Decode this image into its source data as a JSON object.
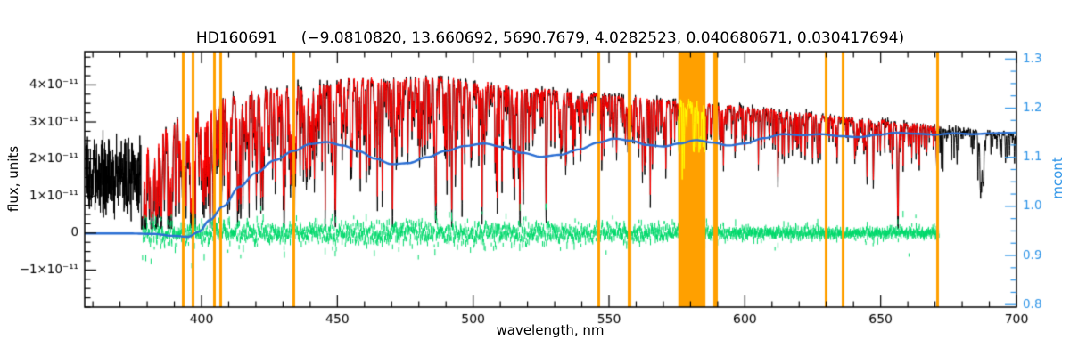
{
  "chart_data": {
    "type": "line",
    "title": "HD160691     (−9.0810820, 13.660692, 5690.7679, 4.0282523, 0.040680671, 0.030417694)",
    "object": "HD160691",
    "header_params": [
      -9.081082,
      13.660692,
      5690.7679,
      4.0282523,
      0.040680671,
      0.030417694
    ],
    "xlabel": "wavelength, nm",
    "ylabel_left": "flux, units",
    "ylabel_right": "mcont",
    "axes": {
      "x": {
        "min": 357,
        "max": 700,
        "major_ticks": [
          400,
          450,
          500,
          550,
          600,
          650,
          700
        ],
        "minor_step": 10
      },
      "flux": {
        "min_1e11": -2,
        "max_1e11": 4.9,
        "major_ticks_1e11": [
          -1,
          0,
          1,
          2,
          3,
          4
        ],
        "tick_labels": [
          "−1×10⁻¹¹",
          "0",
          "1×10⁻¹¹",
          "2×10⁻¹¹",
          "3×10⁻¹¹",
          "4×10⁻¹¹"
        ],
        "minor_step_1e11": 0.25
      },
      "mcont": {
        "min": 0.795,
        "max": 1.315,
        "major_ticks": [
          0.8,
          0.9,
          1.0,
          1.1,
          1.2,
          1.3
        ],
        "tick_labels": [
          "0.8",
          "0.9",
          "1.0",
          "1.1",
          "1.2",
          "1.3"
        ],
        "minor_step": 0.025,
        "color": "#2f95e8"
      }
    },
    "series": {
      "observed": {
        "name": "observed-spectrum",
        "color": "#000000",
        "range_nm": [
          357.35,
          700
        ],
        "noisy_head_nm": [
          357.35,
          377.6
        ],
        "head_level_1e11": 1.55,
        "head_spread_1e11": 1.3,
        "noise_frac": 0.016,
        "continuum_1e11": {
          "x": [
            378,
            385,
            392,
            400,
            408,
            416,
            424,
            432,
            440,
            448,
            456,
            464,
            472,
            480,
            488,
            496,
            504,
            512,
            520,
            530,
            540,
            550,
            560,
            570,
            580,
            590,
            600,
            610,
            620,
            630,
            640,
            650,
            660,
            670,
            680,
            690,
            700
          ],
          "y": [
            2.65,
            2.85,
            3.05,
            3.35,
            3.6,
            3.75,
            3.85,
            3.9,
            4.05,
            4.0,
            4.15,
            4.1,
            4.15,
            4.2,
            4.15,
            4.1,
            4.0,
            3.95,
            3.85,
            3.8,
            3.75,
            3.7,
            3.62,
            3.55,
            3.5,
            3.42,
            3.38,
            3.3,
            3.22,
            3.15,
            3.05,
            3.0,
            2.92,
            2.85,
            2.78,
            2.72,
            2.66
          ]
        },
        "strong_lines": [
          [
            382.0,
            0.55,
            0.3
          ],
          [
            383.2,
            0.5,
            0.2
          ],
          [
            385.0,
            0.4,
            0.2
          ],
          [
            388.9,
            0.6,
            0.35
          ],
          [
            390.6,
            0.35,
            0.15
          ],
          [
            393.37,
            0.93,
            0.45
          ],
          [
            396.85,
            0.91,
            0.45
          ],
          [
            400.9,
            0.35,
            0.12
          ],
          [
            404.58,
            0.55,
            0.15
          ],
          [
            406.3,
            0.4,
            0.12
          ],
          [
            407.2,
            0.45,
            0.12
          ],
          [
            410.17,
            0.73,
            0.25
          ],
          [
            413.2,
            0.3,
            0.12
          ],
          [
            414.4,
            0.4,
            0.15
          ],
          [
            416.7,
            0.3,
            0.1
          ],
          [
            420.2,
            0.35,
            0.12
          ],
          [
            422.67,
            0.6,
            0.18
          ],
          [
            425.0,
            0.4,
            0.12
          ],
          [
            427.2,
            0.45,
            0.12
          ],
          [
            430.3,
            0.5,
            0.4
          ],
          [
            432.6,
            0.4,
            0.15
          ],
          [
            434.05,
            0.78,
            0.3
          ],
          [
            438.35,
            0.55,
            0.25
          ],
          [
            440.5,
            0.4,
            0.15
          ],
          [
            441.5,
            0.35,
            0.12
          ],
          [
            445.5,
            0.3,
            0.1
          ],
          [
            448.1,
            0.35,
            0.12
          ],
          [
            453.0,
            0.3,
            0.15
          ],
          [
            455.4,
            0.4,
            0.1
          ],
          [
            458.7,
            0.3,
            0.1
          ],
          [
            462.0,
            0.3,
            0.1
          ],
          [
            466.8,
            0.3,
            0.12
          ],
          [
            470.3,
            0.3,
            0.12
          ],
          [
            473.7,
            0.25,
            0.1
          ],
          [
            478.3,
            0.3,
            0.12
          ],
          [
            486.13,
            0.66,
            0.25
          ],
          [
            489.1,
            0.35,
            0.15
          ],
          [
            492.0,
            0.3,
            0.1
          ],
          [
            495.7,
            0.3,
            0.12
          ],
          [
            498.2,
            0.35,
            0.15
          ],
          [
            504.2,
            0.3,
            0.1
          ],
          [
            508.0,
            0.3,
            0.12
          ],
          [
            511.0,
            0.25,
            0.1
          ],
          [
            516.73,
            0.55,
            0.18
          ],
          [
            517.27,
            0.55,
            0.18
          ],
          [
            518.36,
            0.6,
            0.18
          ],
          [
            522.7,
            0.3,
            0.1
          ],
          [
            526.95,
            0.5,
            0.15
          ],
          [
            532.8,
            0.4,
            0.15
          ],
          [
            537.1,
            0.3,
            0.1
          ],
          [
            543.0,
            0.25,
            0.1
          ],
          [
            546.0,
            0.3,
            0.1
          ],
          [
            552.8,
            0.35,
            0.12
          ],
          [
            558.8,
            0.3,
            0.1
          ],
          [
            563.5,
            0.25,
            0.1
          ],
          [
            570.0,
            0.25,
            0.1
          ],
          [
            576.0,
            0.3,
            0.1
          ],
          [
            581.0,
            0.3,
            0.12
          ],
          [
            588.99,
            0.62,
            0.2
          ],
          [
            589.59,
            0.58,
            0.2
          ],
          [
            597.0,
            0.25,
            0.1
          ],
          [
            610.3,
            0.3,
            0.12
          ],
          [
            612.2,
            0.3,
            0.1
          ],
          [
            616.2,
            0.35,
            0.12
          ],
          [
            623.0,
            0.25,
            0.1
          ],
          [
            627.5,
            0.2,
            0.1
          ],
          [
            634.0,
            0.25,
            0.1
          ],
          [
            638.0,
            0.2,
            0.1
          ],
          [
            645.0,
            0.2,
            0.1
          ],
          [
            649.9,
            0.25,
            0.1
          ],
          [
            656.28,
            0.86,
            0.2
          ],
          [
            661.0,
            0.2,
            0.1
          ],
          [
            667.0,
            0.2,
            0.1
          ],
          [
            670.8,
            0.3,
            0.12
          ],
          [
            676.0,
            0.2,
            0.1
          ],
          [
            687.3,
            0.35,
            0.7
          ],
          [
            694.0,
            0.2,
            0.15
          ]
        ],
        "random_lines": {
          "seed": 77,
          "count": 1400,
          "w_min": 377.8,
          "w_max": 700,
          "blue_bias_exp": 1.55,
          "depth_base": 0.04,
          "depth_max": 0.42,
          "sigma_nm": [
            0.04,
            0.14
          ]
        }
      },
      "fit": {
        "name": "fitted-spectrum",
        "color": "#ff0000",
        "range_nm": [
          378.3,
          671.5
        ],
        "depth_scale": 0.88,
        "noise_frac": 0.009
      },
      "masked": {
        "name": "masked-spectrum",
        "color": "#ffff00"
      },
      "residual": {
        "name": "residual-spectrum",
        "color": "#00d96b",
        "range_nm": [
          378.3,
          671.5
        ],
        "step_nm": 0.12,
        "base_amp_1e11": 0.05,
        "bump_amp_1e11": 0.095,
        "bump_center_nm": 495,
        "bump_sigma_nm": 80,
        "spike_prob": 0.012,
        "spike_amp_1e11": 0.5,
        "line_coupling_1e11": 0.33,
        "errbar_1e11": [
          0.04,
          0.1
        ]
      },
      "mcont_curve": {
        "name": "continuum-ratio-curve",
        "color": "#2b6fd4",
        "line_width": 2.4,
        "x": [
          357,
          372,
          382,
          390,
          395,
          399,
          403,
          408,
          414,
          420,
          427,
          434,
          440,
          446,
          452,
          458,
          464,
          470,
          476,
          483,
          490,
          497,
          504,
          511,
          518,
          525,
          532,
          539,
          546,
          552,
          558,
          564,
          570,
          576,
          582,
          588,
          594,
          600,
          607,
          614,
          621,
          628,
          635,
          642,
          649,
          656,
          663,
          670,
          677,
          684,
          691,
          700
        ],
        "y": [
          0.945,
          0.945,
          0.944,
          0.94,
          0.938,
          0.948,
          0.972,
          1.0,
          1.04,
          1.068,
          1.094,
          1.113,
          1.127,
          1.131,
          1.124,
          1.112,
          1.097,
          1.086,
          1.088,
          1.1,
          1.113,
          1.123,
          1.128,
          1.121,
          1.109,
          1.101,
          1.105,
          1.116,
          1.13,
          1.138,
          1.134,
          1.125,
          1.122,
          1.128,
          1.135,
          1.13,
          1.124,
          1.128,
          1.139,
          1.147,
          1.145,
          1.147,
          1.143,
          1.141,
          1.146,
          1.15,
          1.148,
          1.146,
          1.149,
          1.147,
          1.149,
          1.15
        ]
      }
    },
    "masks": {
      "color": "#ffa000",
      "band_nm": [
        575.5,
        585.5
      ],
      "lines_nm": [
        393.4,
        396.8,
        404.6,
        407.0,
        434.0,
        546.1,
        557.7,
        589.3,
        630.0,
        636.0,
        670.8
      ],
      "line_widths_nm": [
        1.0,
        1.0,
        0.9,
        0.9,
        1.0,
        1.0,
        1.2,
        1.7,
        1.0,
        1.0,
        1.0
      ]
    }
  }
}
